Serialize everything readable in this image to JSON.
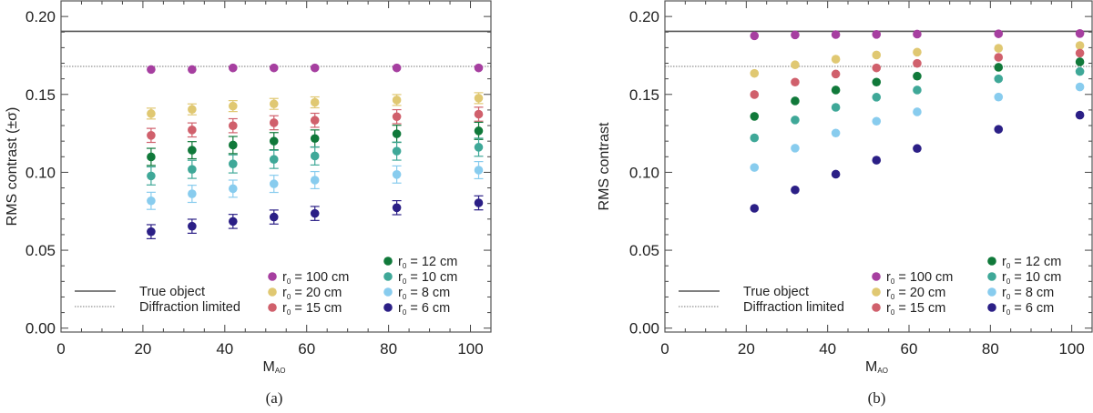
{
  "chart_data": [
    {
      "type": "scatter",
      "panel_label": "(a)",
      "xlabel": "M",
      "xlabel_sub": "AO",
      "ylabel": "RMS contrast (±σ)",
      "xlim": [
        0,
        105
      ],
      "ylim": [
        -0.0025,
        0.21
      ],
      "xticks": [
        0,
        20,
        40,
        60,
        80,
        100
      ],
      "yticks": [
        0.0,
        0.05,
        0.1,
        0.15,
        0.2
      ],
      "ytick_labels": [
        "0.00",
        "0.05",
        "0.10",
        "0.15",
        "0.20"
      ],
      "x": [
        22,
        32,
        42,
        52,
        62,
        82,
        102
      ],
      "reference_lines": [
        {
          "name": "True object",
          "value": 0.1905,
          "style": "solid"
        },
        {
          "name": "Diffraction limited",
          "value": 0.168,
          "style": "dotted"
        }
      ],
      "error_bars": true,
      "series": [
        {
          "name": "r",
          "sub": "0",
          "label": " = 100 cm",
          "color": "#a63fa0",
          "values": [
            0.166,
            0.166,
            0.167,
            0.167,
            0.167,
            0.167,
            0.167
          ],
          "sigma": 0
        },
        {
          "name": "r",
          "sub": "0",
          "label": " = 20 cm",
          "color": "#e0c872",
          "values": [
            0.1377,
            0.1404,
            0.1425,
            0.1439,
            0.1449,
            0.1464,
            0.1476
          ],
          "sigma": 0.0035
        },
        {
          "name": "r",
          "sub": "0",
          "label": " = 15 cm",
          "color": "#d0606c",
          "values": [
            0.1237,
            0.1272,
            0.1299,
            0.1318,
            0.1334,
            0.1357,
            0.1373
          ],
          "sigma": 0.0045
        },
        {
          "name": "r",
          "sub": "0",
          "label": " = 12 cm",
          "color": "#10793a",
          "values": [
            0.1099,
            0.1142,
            0.1175,
            0.12,
            0.1217,
            0.1247,
            0.1266
          ],
          "sigma": 0.0055
        },
        {
          "name": "r",
          "sub": "0",
          "label": " = 10 cm",
          "color": "#3fa898",
          "values": [
            0.0977,
            0.1019,
            0.1054,
            0.1083,
            0.1105,
            0.1136,
            0.1161
          ],
          "sigma": 0.0058
        },
        {
          "name": "r",
          "sub": "0",
          "label": " = 8 cm",
          "color": "#88ccee",
          "values": [
            0.0817,
            0.0862,
            0.0895,
            0.0926,
            0.095,
            0.0986,
            0.1014
          ],
          "sigma": 0.0055
        },
        {
          "name": "r",
          "sub": "0",
          "label": " = 6 cm",
          "color": "#2b1f86",
          "values": [
            0.0619,
            0.0654,
            0.0685,
            0.0713,
            0.0736,
            0.0773,
            0.0804
          ],
          "sigma": 0.0045
        }
      ]
    },
    {
      "type": "scatter",
      "panel_label": "(b)",
      "xlabel": "M",
      "xlabel_sub": "AO",
      "ylabel": "RMS contrast",
      "xlim": [
        0,
        105
      ],
      "ylim": [
        -0.0025,
        0.21
      ],
      "xticks": [
        0,
        20,
        40,
        60,
        80,
        100
      ],
      "yticks": [
        0.0,
        0.05,
        0.1,
        0.15,
        0.2
      ],
      "ytick_labels": [
        "0.00",
        "0.05",
        "0.10",
        "0.15",
        "0.20"
      ],
      "x": [
        22,
        32,
        42,
        52,
        62,
        82,
        102
      ],
      "reference_lines": [
        {
          "name": "True object",
          "value": 0.1905,
          "style": "solid"
        },
        {
          "name": "Diffraction limited",
          "value": 0.168,
          "style": "dotted"
        }
      ],
      "error_bars": false,
      "series": [
        {
          "name": "r",
          "sub": "0",
          "label": " = 100 cm",
          "color": "#a63fa0",
          "values": [
            0.1876,
            0.1882,
            0.1884,
            0.1885,
            0.1887,
            0.1889,
            0.1891
          ]
        },
        {
          "name": "r",
          "sub": "0",
          "label": " = 20 cm",
          "color": "#e0c872",
          "values": [
            0.1635,
            0.169,
            0.1726,
            0.1753,
            0.1771,
            0.1796,
            0.1814
          ]
        },
        {
          "name": "r",
          "sub": "0",
          "label": " = 15 cm",
          "color": "#d0606c",
          "values": [
            0.1499,
            0.1579,
            0.1631,
            0.167,
            0.1699,
            0.1738,
            0.1765
          ]
        },
        {
          "name": "r",
          "sub": "0",
          "label": " = 12 cm",
          "color": "#10793a",
          "values": [
            0.1359,
            0.1458,
            0.1528,
            0.1579,
            0.1617,
            0.1674,
            0.1709
          ]
        },
        {
          "name": "r",
          "sub": "0",
          "label": " = 10 cm",
          "color": "#3fa898",
          "values": [
            0.1221,
            0.1336,
            0.1417,
            0.1482,
            0.1528,
            0.16,
            0.1647
          ]
        },
        {
          "name": "r",
          "sub": "0",
          "label": " = 8 cm",
          "color": "#88ccee",
          "values": [
            0.1031,
            0.1155,
            0.1252,
            0.1328,
            0.1388,
            0.1483,
            0.1548
          ]
        },
        {
          "name": "r",
          "sub": "0",
          "label": " = 6 cm",
          "color": "#2b1f86",
          "values": [
            0.0769,
            0.0887,
            0.0988,
            0.1078,
            0.1153,
            0.1276,
            0.1367
          ]
        }
      ]
    }
  ]
}
